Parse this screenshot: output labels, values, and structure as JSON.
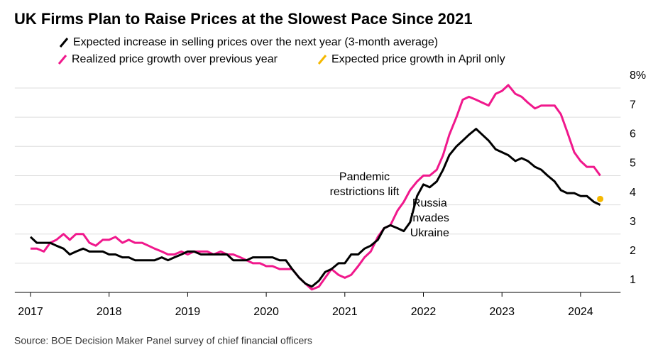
{
  "chart_data": {
    "type": "line",
    "title": "UK Firms Plan to Raise Prices at the Slowest Pace Since 2021",
    "source": "Source: BOE Decision Maker Panel survey of chief financial officers",
    "x": [
      2017,
      2017.08,
      2017.17,
      2017.25,
      2017.33,
      2017.42,
      2017.5,
      2017.58,
      2017.67,
      2017.75,
      2017.83,
      2017.92,
      2018,
      2018.08,
      2018.17,
      2018.25,
      2018.33,
      2018.42,
      2018.5,
      2018.58,
      2018.67,
      2018.75,
      2018.83,
      2018.92,
      2019,
      2019.08,
      2019.17,
      2019.25,
      2019.33,
      2019.42,
      2019.5,
      2019.58,
      2019.67,
      2019.75,
      2019.83,
      2019.92,
      2020,
      2020.08,
      2020.17,
      2020.25,
      2020.33,
      2020.42,
      2020.5,
      2020.58,
      2020.67,
      2020.75,
      2020.83,
      2020.92,
      2021,
      2021.08,
      2021.17,
      2021.25,
      2021.33,
      2021.42,
      2021.5,
      2021.58,
      2021.67,
      2021.75,
      2021.83,
      2021.92,
      2022,
      2022.08,
      2022.17,
      2022.25,
      2022.33,
      2022.42,
      2022.5,
      2022.58,
      2022.67,
      2022.75,
      2022.83,
      2022.92,
      2023,
      2023.08,
      2023.17,
      2023.25,
      2023.33,
      2023.42,
      2023.5,
      2023.58,
      2023.67,
      2023.75,
      2023.83,
      2023.92,
      2024,
      2024.08,
      2024.17,
      2024.25
    ],
    "series": [
      {
        "name": "Expected increase in selling prices over the next year (3-month average)",
        "color": "#000000",
        "values": [
          2.9,
          2.7,
          2.7,
          2.7,
          2.6,
          2.5,
          2.3,
          2.4,
          2.5,
          2.4,
          2.4,
          2.4,
          2.3,
          2.3,
          2.2,
          2.2,
          2.1,
          2.1,
          2.1,
          2.1,
          2.2,
          2.1,
          2.2,
          2.3,
          2.4,
          2.4,
          2.3,
          2.3,
          2.3,
          2.3,
          2.3,
          2.1,
          2.1,
          2.1,
          2.2,
          2.2,
          2.2,
          2.2,
          2.1,
          2.1,
          1.8,
          1.5,
          1.3,
          1.2,
          1.4,
          1.7,
          1.8,
          2.0,
          2.0,
          2.3,
          2.3,
          2.5,
          2.6,
          2.8,
          3.2,
          3.3,
          3.2,
          3.1,
          3.4,
          4.3,
          4.7,
          4.6,
          4.8,
          5.2,
          5.7,
          6.0,
          6.2,
          6.4,
          6.6,
          6.4,
          6.2,
          5.9,
          5.8,
          5.7,
          5.5,
          5.6,
          5.5,
          5.3,
          5.2,
          5.0,
          4.8,
          4.5,
          4.4,
          4.4,
          4.3,
          4.3,
          4.1,
          4.0
        ]
      },
      {
        "name": "Realized price growth over previous year",
        "color": "#f0188c",
        "values": [
          2.5,
          2.5,
          2.4,
          2.7,
          2.8,
          3.0,
          2.8,
          3.0,
          3.0,
          2.7,
          2.6,
          2.8,
          2.8,
          2.9,
          2.7,
          2.8,
          2.7,
          2.7,
          2.6,
          2.5,
          2.4,
          2.3,
          2.3,
          2.4,
          2.3,
          2.4,
          2.4,
          2.4,
          2.3,
          2.4,
          2.3,
          2.3,
          2.2,
          2.1,
          2.0,
          2.0,
          1.9,
          1.9,
          1.8,
          1.8,
          1.8,
          1.5,
          1.3,
          1.1,
          1.2,
          1.5,
          1.8,
          1.6,
          1.5,
          1.6,
          1.9,
          2.2,
          2.4,
          2.9,
          3.2,
          3.3,
          3.8,
          4.1,
          4.5,
          4.8,
          5.0,
          5.0,
          5.2,
          5.7,
          6.4,
          7.0,
          7.6,
          7.7,
          7.6,
          7.5,
          7.4,
          7.8,
          7.9,
          8.1,
          7.8,
          7.7,
          7.5,
          7.3,
          7.4,
          7.4,
          7.4,
          7.1,
          6.5,
          5.8,
          5.5,
          5.3,
          5.3,
          5.0
        ]
      },
      {
        "name": "Expected price growth in April only",
        "color": "#f5b800",
        "x": [
          2024.25
        ],
        "values": [
          4.2
        ]
      }
    ],
    "annotations": [
      {
        "text": "Pandemic restrictions lift",
        "x": 2021.25,
        "y": 4.4
      },
      {
        "text": "Russia invades Ukraine",
        "x": 2022.08,
        "y": 3.5
      }
    ],
    "xlim": [
      2016.8,
      2024.6
    ],
    "xticks": [
      2017,
      2018,
      2019,
      2020,
      2021,
      2022,
      2023,
      2024
    ],
    "ylim": [
      1,
      8.2
    ],
    "yticks": [
      1,
      2,
      3,
      4,
      5,
      6,
      7,
      {
        "value": 8,
        "label": "8%"
      }
    ],
    "grid": true
  }
}
